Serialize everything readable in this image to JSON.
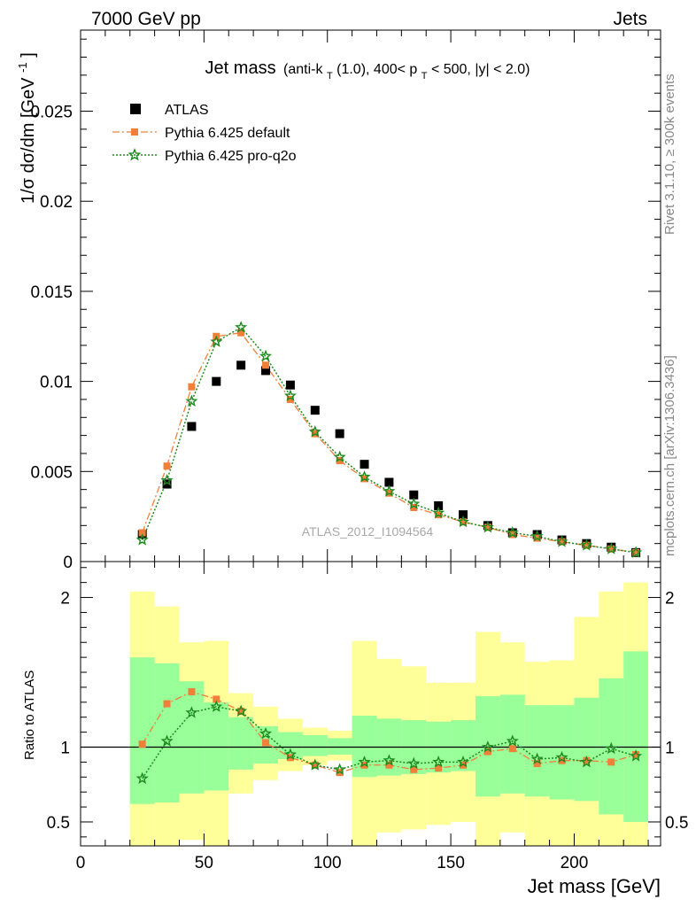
{
  "header": {
    "left": "7000 GeV pp",
    "right": "Jets"
  },
  "side_labels": {
    "rivet": "Rivet 3.1.10, ≥ 300k events",
    "mcplots": "mcplots.cern.ch [arXiv:1306.3436]"
  },
  "title": {
    "main": "Jet mass",
    "sub_prefix": "(anti-k",
    "sub_k_sub": "T",
    "sub_mid": "(1.0), 400< p",
    "sub_p_sub": "T",
    "sub_suffix": " < 500, |y| < 2.0)"
  },
  "watermark": "ATLAS_2012_I1094564",
  "axes": {
    "ylabel_main": "1/σ dσ/dm [GeV",
    "ylabel_main_sup": "-1",
    "ylabel_main_close": "]",
    "ylabel_ratio": "Ratio to ATLAS",
    "xlabel": "Jet mass [GeV]"
  },
  "colors": {
    "atlas": "#000000",
    "default": "#f07f3a",
    "proq2o": "#1e8a1e",
    "band_inner": "#99ff99",
    "band_outer": "#ffff99"
  },
  "chart_data": [
    {
      "type": "scatter",
      "panel": "main",
      "xlim": [
        0,
        235
      ],
      "ylim": [
        0,
        0.0295
      ],
      "yticks": [
        0,
        0.005,
        0.01,
        0.015,
        0.02,
        0.025
      ],
      "ytick_labels": [
        "0",
        "0.005",
        "0.01",
        "0.015",
        "0.02",
        "0.025"
      ],
      "legend": {
        "placement": "top-left",
        "entries": [
          "ATLAS",
          "Pythia 6.425 default",
          "Pythia 6.425 pro-q2o"
        ]
      },
      "x": [
        25,
        35,
        45,
        55,
        65,
        75,
        85,
        95,
        105,
        115,
        125,
        135,
        145,
        155,
        165,
        175,
        185,
        195,
        205,
        215,
        225
      ],
      "series": [
        {
          "name": "ATLAS",
          "marker": "square",
          "values": [
            0.0015,
            0.0043,
            0.0075,
            0.01,
            0.0109,
            0.0106,
            0.0098,
            0.0084,
            0.0071,
            0.0054,
            0.0044,
            0.0037,
            0.0031,
            0.0026,
            0.002,
            0.0016,
            0.0015,
            0.0012,
            0.001,
            0.0008,
            0.0005
          ]
        },
        {
          "name": "Pythia 6.425 default",
          "marker": "square-small",
          "line": "dashdot",
          "values": [
            0.0016,
            0.0053,
            0.0097,
            0.0125,
            0.0127,
            0.0109,
            0.009,
            0.0071,
            0.0056,
            0.0046,
            0.0038,
            0.003,
            0.0026,
            0.0022,
            0.0019,
            0.0015,
            0.0013,
            0.0011,
            0.0009,
            0.0007,
            0.0005
          ]
        },
        {
          "name": "Pythia 6.425 pro-q2o",
          "marker": "star",
          "line": "dotted",
          "values": [
            0.0012,
            0.0045,
            0.0089,
            0.0122,
            0.013,
            0.0114,
            0.0092,
            0.0072,
            0.0058,
            0.0047,
            0.0039,
            0.0032,
            0.0027,
            0.0022,
            0.0019,
            0.0016,
            0.0014,
            0.0011,
            0.0009,
            0.0007,
            0.0005
          ]
        }
      ]
    },
    {
      "type": "line",
      "panel": "ratio",
      "xlim": [
        0,
        235
      ],
      "ylim": [
        0.34,
        2.24
      ],
      "yticks": [
        0.5,
        1,
        2
      ],
      "ytick_labels": [
        "0.5",
        "1",
        "2"
      ],
      "xticks": [
        0,
        50,
        100,
        150,
        200
      ],
      "xtick_labels": [
        "0",
        "50",
        "100",
        "150",
        "200"
      ],
      "reference_line": 1,
      "bins": [
        [
          20,
          30
        ],
        [
          30,
          40
        ],
        [
          40,
          50
        ],
        [
          50,
          60
        ],
        [
          60,
          70
        ],
        [
          70,
          80
        ],
        [
          80,
          90
        ],
        [
          90,
          100
        ],
        [
          100,
          110
        ],
        [
          110,
          120
        ],
        [
          120,
          130
        ],
        [
          130,
          140
        ],
        [
          140,
          150
        ],
        [
          150,
          160
        ],
        [
          160,
          170
        ],
        [
          170,
          180
        ],
        [
          180,
          190
        ],
        [
          190,
          200
        ],
        [
          200,
          210
        ],
        [
          210,
          220
        ],
        [
          220,
          230
        ]
      ],
      "band_inner": {
        "lo": [
          0.62,
          0.63,
          0.69,
          0.71,
          0.85,
          0.89,
          0.92,
          0.94,
          0.95,
          0.8,
          0.81,
          0.82,
          0.83,
          0.84,
          0.67,
          0.69,
          0.67,
          0.65,
          0.64,
          0.55,
          0.5
        ],
        "hi": [
          1.6,
          1.56,
          1.44,
          1.3,
          1.2,
          1.14,
          1.1,
          1.08,
          1.06,
          1.21,
          1.19,
          1.18,
          1.17,
          1.18,
          1.34,
          1.35,
          1.28,
          1.28,
          1.33,
          1.46,
          1.64
        ]
      },
      "band_outer": {
        "lo": [
          0.34,
          0.34,
          0.38,
          0.34,
          0.69,
          0.78,
          0.84,
          0.88,
          0.91,
          0.34,
          0.43,
          0.45,
          0.48,
          0.5,
          0.34,
          0.43,
          0.34,
          0.34,
          0.34,
          0.34,
          0.34
        ],
        "hi": [
          2.04,
          1.94,
          1.7,
          1.71,
          1.36,
          1.27,
          1.19,
          1.13,
          1.11,
          1.71,
          1.59,
          1.54,
          1.43,
          1.43,
          1.77,
          1.7,
          1.57,
          1.58,
          1.87,
          2.04,
          2.1
        ]
      },
      "series": [
        {
          "name": "Pythia 6.425 default",
          "marker": "square-small",
          "line": "dashdot",
          "values": [
            1.02,
            1.29,
            1.37,
            1.32,
            1.24,
            1.03,
            0.93,
            0.88,
            0.83,
            0.88,
            0.88,
            0.85,
            0.86,
            0.88,
            0.97,
            0.99,
            0.89,
            0.91,
            0.91,
            0.9,
            0.95
          ]
        },
        {
          "name": "Pythia 6.425 pro-q2o",
          "marker": "star",
          "line": "dotted",
          "values": [
            0.79,
            1.04,
            1.23,
            1.27,
            1.24,
            1.09,
            0.95,
            0.88,
            0.85,
            0.9,
            0.91,
            0.89,
            0.9,
            0.9,
            1.0,
            1.04,
            0.92,
            0.93,
            0.9,
            0.99,
            0.94
          ]
        }
      ]
    }
  ]
}
